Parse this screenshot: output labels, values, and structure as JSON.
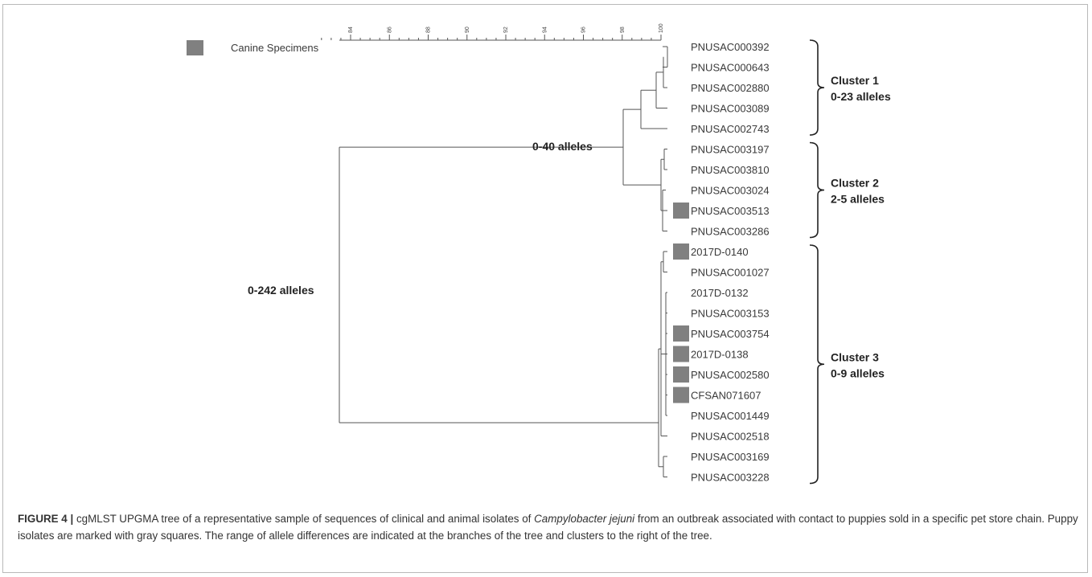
{
  "legend": {
    "label": "Canine Specimens",
    "color": "#808080"
  },
  "scale": {
    "ticks": [
      "84",
      "86",
      "88",
      "90",
      "92",
      "94",
      "96",
      "98",
      "100"
    ]
  },
  "leaves": [
    {
      "label": "PNUSAC000392",
      "canine": false
    },
    {
      "label": "PNUSAC000643",
      "canine": false
    },
    {
      "label": "PNUSAC002880",
      "canine": false
    },
    {
      "label": "PNUSAC003089",
      "canine": false
    },
    {
      "label": "PNUSAC002743",
      "canine": false
    },
    {
      "label": "PNUSAC003197",
      "canine": false
    },
    {
      "label": "PNUSAC003810",
      "canine": false
    },
    {
      "label": "PNUSAC003024",
      "canine": false
    },
    {
      "label": "PNUSAC003513",
      "canine": true
    },
    {
      "label": "PNUSAC003286",
      "canine": false
    },
    {
      "label": "2017D-0140",
      "canine": true
    },
    {
      "label": "PNUSAC001027",
      "canine": false
    },
    {
      "label": "2017D-0132",
      "canine": false
    },
    {
      "label": "PNUSAC003153",
      "canine": false
    },
    {
      "label": "PNUSAC003754",
      "canine": true
    },
    {
      "label": "2017D-0138",
      "canine": true
    },
    {
      "label": "PNUSAC002580",
      "canine": true
    },
    {
      "label": "CFSAN071607",
      "canine": true
    },
    {
      "label": "PNUSAC001449",
      "canine": false
    },
    {
      "label": "PNUSAC002518",
      "canine": false
    },
    {
      "label": "PNUSAC003169",
      "canine": false
    },
    {
      "label": "PNUSAC003228",
      "canine": false
    }
  ],
  "clusters": [
    {
      "name": "Cluster 1",
      "range": "0-23 alleles",
      "first_leaf": 0,
      "last_leaf": 4
    },
    {
      "name": "Cluster 2",
      "range": "2-5 alleles",
      "first_leaf": 5,
      "last_leaf": 9
    },
    {
      "name": "Cluster 3",
      "range": "0-9 alleles",
      "first_leaf": 10,
      "last_leaf": 21
    }
  ],
  "branch_labels": {
    "root": "0-242 alleles",
    "upper": "0-40 alleles"
  },
  "caption": {
    "label": "FIGURE 4 |",
    "text_before": " cgMLST UPGMA tree of a representative sample of sequences of clinical and animal isolates of ",
    "species": "Campylobacter jejuni",
    "text_after": " from an outbreak associated with contact to puppies sold in a specific pet store chain. Puppy isolates are marked with gray squares. The range of allele differences are indicated at the branches of the tree and clusters to the right of the tree."
  }
}
